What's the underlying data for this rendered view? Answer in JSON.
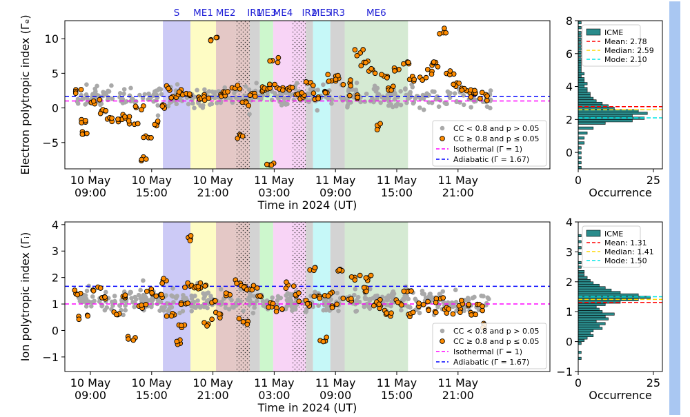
{
  "chart_data": [
    {
      "type": "scatter",
      "panel": "electron-main",
      "ylabel": "Electron polytropic index (Γₑ)",
      "xlabel": "Time in 2024 (UT)",
      "xlim_hours": [
        6.5,
        54.0
      ],
      "ylim": [
        -8.8,
        12.6
      ],
      "yticks": [
        10,
        5,
        0,
        -5
      ],
      "xticks": [
        {
          "t": 9,
          "line1": "10 May",
          "line2": "09:00"
        },
        {
          "t": 15,
          "line1": "10 May",
          "line2": "15:00"
        },
        {
          "t": 21,
          "line1": "10 May",
          "line2": "21:00"
        },
        {
          "t": 27,
          "line1": "11 May",
          "line2": "03:00"
        },
        {
          "t": 33,
          "line1": "11 May",
          "line2": "09:00"
        },
        {
          "t": 39,
          "line1": "11 May",
          "line2": "15:00"
        },
        {
          "t": 45,
          "line1": "11 May",
          "line2": "21:00"
        }
      ],
      "regions": [
        {
          "label": "S",
          "start": 16.1,
          "end": 18.8,
          "color": "#cccaf6",
          "hatch": false
        },
        {
          "label": "ME1",
          "start": 18.8,
          "end": 21.3,
          "color": "#fefcc4",
          "hatch": false
        },
        {
          "label": "ME2",
          "start": 21.3,
          "end": 23.2,
          "color": "#e4c8c6",
          "hatch": false
        },
        {
          "label": "",
          "start": 23.2,
          "end": 24.6,
          "color": "#e4c8c6",
          "hatch": true
        },
        {
          "label": "IR1",
          "start": 24.6,
          "end": 25.6,
          "color": "#d3d3d3",
          "hatch": false
        },
        {
          "label": "ME3",
          "start": 25.6,
          "end": 26.9,
          "color": "#cdf7cd",
          "hatch": false
        },
        {
          "label": "ME4",
          "start": 26.9,
          "end": 28.8,
          "color": "#f8d4f6",
          "hatch": false
        },
        {
          "label": "",
          "start": 28.8,
          "end": 30.1,
          "color": "#f8d4f6",
          "hatch": true
        },
        {
          "label": "IR2",
          "start": 30.1,
          "end": 30.8,
          "color": "#d3d3d3",
          "hatch": false
        },
        {
          "label": "ME5",
          "start": 30.8,
          "end": 32.5,
          "color": "#c6f8f8",
          "hatch": false
        },
        {
          "label": "IR3",
          "start": 32.5,
          "end": 33.9,
          "color": "#d3d3d3",
          "hatch": false
        },
        {
          "label": "ME6",
          "start": 33.9,
          "end": 40.1,
          "color": "#d5ead3",
          "hatch": false
        }
      ],
      "isothermal": 1.0,
      "adiabatic": 1.67,
      "series_gray": {
        "name": "CC < 0.8 and p > 0.05",
        "center": 1.5,
        "spread": 1.6,
        "seed": 11
      },
      "series_orange": {
        "name": "CC  ≥  0.8 and p  ≤  0.05",
        "anchors": [
          [
            7.8,
            2.6
          ],
          [
            8.2,
            -1.8
          ],
          [
            8.6,
            -3.5
          ],
          [
            9.5,
            0.8
          ],
          [
            10.2,
            -0.5
          ],
          [
            11.0,
            -1.6
          ],
          [
            11.8,
            -2.0
          ],
          [
            12.6,
            -1.2
          ],
          [
            13.2,
            -2.3
          ],
          [
            13.8,
            0.0
          ],
          [
            14.3,
            -7.0
          ],
          [
            14.6,
            -4.0
          ],
          [
            15.2,
            -2.2
          ],
          [
            15.9,
            0.5
          ],
          [
            16.5,
            3.0
          ],
          [
            17.3,
            1.5
          ],
          [
            18.1,
            2.5
          ],
          [
            18.8,
            1.8
          ],
          [
            19.6,
            1.3
          ],
          [
            20.5,
            1.5
          ],
          [
            21.2,
            10.1
          ],
          [
            21.8,
            2.0
          ],
          [
            22.4,
            2.2
          ],
          [
            23.3,
            2.8
          ],
          [
            23.6,
            -4.0
          ],
          [
            24.3,
            1.0
          ],
          [
            24.9,
            2.0
          ],
          [
            25.7,
            2.5
          ],
          [
            26.4,
            2.8
          ],
          [
            26.6,
            -8.2
          ],
          [
            27.0,
            6.8
          ],
          [
            27.5,
            3.0
          ],
          [
            28.2,
            2.6
          ],
          [
            29.1,
            2.0
          ],
          [
            29.8,
            2.1
          ],
          [
            30.5,
            3.5
          ],
          [
            31.3,
            1.6
          ],
          [
            32.2,
            2.3
          ],
          [
            32.7,
            4.0
          ],
          [
            33.4,
            4.3
          ],
          [
            34.2,
            3.5
          ],
          [
            34.8,
            1.4
          ],
          [
            35.3,
            8.0
          ],
          [
            35.8,
            6.5
          ],
          [
            36.5,
            5.5
          ],
          [
            37.0,
            -2.8
          ],
          [
            37.8,
            4.5
          ],
          [
            38.5,
            3.0
          ],
          [
            39.2,
            5.5
          ],
          [
            39.9,
            6.4
          ],
          [
            40.6,
            4.2
          ],
          [
            41.5,
            4.0
          ],
          [
            42.2,
            5.6
          ],
          [
            43.0,
            6.5
          ],
          [
            43.6,
            10.8
          ],
          [
            44.2,
            5.0
          ],
          [
            44.8,
            3.5
          ],
          [
            45.6,
            2.8
          ],
          [
            46.3,
            2.2
          ],
          [
            47.0,
            2.0
          ],
          [
            47.6,
            1.8
          ]
        ],
        "jitter": 0.7,
        "seed": 23
      }
    },
    {
      "type": "histogram",
      "panel": "electron-hist",
      "xlabel": "Occurrence",
      "xlim": [
        0,
        28
      ],
      "ylim": [
        -1,
        8
      ],
      "yticks": [
        8,
        6,
        4,
        2,
        0
      ],
      "xticks": [
        0,
        25
      ],
      "legend_title": "ICME",
      "mean": 2.78,
      "median": 2.59,
      "mode": 2.1,
      "mean_label": "Mean: 2.78",
      "median_label": "Median: 2.59",
      "mode_label": "Mode: 2.10",
      "bin_width": 0.15,
      "bins": [
        [
          -1.0,
          1
        ],
        [
          -0.7,
          1
        ],
        [
          -0.4,
          1
        ],
        [
          -0.1,
          1
        ],
        [
          0.2,
          1
        ],
        [
          0.5,
          2
        ],
        [
          0.8,
          2
        ],
        [
          1.1,
          3
        ],
        [
          1.4,
          5
        ],
        [
          1.7,
          9
        ],
        [
          1.85,
          18
        ],
        [
          2.0,
          22
        ],
        [
          2.15,
          18
        ],
        [
          2.3,
          23
        ],
        [
          2.45,
          20
        ],
        [
          2.6,
          12
        ],
        [
          2.75,
          10
        ],
        [
          2.9,
          8
        ],
        [
          3.05,
          6
        ],
        [
          3.2,
          5
        ],
        [
          3.35,
          4
        ],
        [
          3.5,
          4
        ],
        [
          3.65,
          3
        ],
        [
          3.8,
          3
        ],
        [
          3.95,
          2
        ],
        [
          4.1,
          3
        ],
        [
          4.25,
          2
        ],
        [
          4.4,
          2
        ],
        [
          4.55,
          1
        ],
        [
          4.7,
          2
        ],
        [
          4.85,
          1
        ],
        [
          5.0,
          1
        ],
        [
          5.15,
          1
        ],
        [
          5.3,
          1
        ],
        [
          5.45,
          1
        ],
        [
          5.6,
          1
        ],
        [
          5.8,
          1
        ],
        [
          6.0,
          1
        ],
        [
          6.2,
          1
        ],
        [
          6.4,
          1
        ],
        [
          6.6,
          1
        ],
        [
          6.8,
          1
        ],
        [
          7.0,
          1
        ],
        [
          7.2,
          1
        ],
        [
          7.5,
          1
        ],
        [
          7.8,
          1
        ]
      ]
    },
    {
      "type": "scatter",
      "panel": "ion-main",
      "ylabel": "Ion polytropic index (Γᵢ)",
      "xlabel": "Time in 2024 (UT)",
      "xlim_hours": [
        6.5,
        54.0
      ],
      "ylim": [
        -1.55,
        4.1
      ],
      "yticks": [
        4,
        3,
        2,
        1,
        0,
        -1
      ],
      "isothermal": 1.0,
      "adiabatic": 1.67,
      "series_gray": {
        "name": "CC < 0.8 and p > 0.05",
        "center": 1.1,
        "spread": 0.45,
        "seed": 31
      },
      "series_orange": {
        "name": "CC  ≥  0.8 and p  ≤  0.05",
        "anchors": [
          [
            7.8,
            1.4
          ],
          [
            8.3,
            0.5
          ],
          [
            9.6,
            1.6
          ],
          [
            10.4,
            1.2
          ],
          [
            11.5,
            0.6
          ],
          [
            12.5,
            1.3
          ],
          [
            13.0,
            -0.2
          ],
          [
            14.0,
            0.9
          ],
          [
            14.8,
            1.5
          ],
          [
            15.6,
            1.3
          ],
          [
            16.4,
            1.9
          ],
          [
            16.9,
            0.6
          ],
          [
            17.5,
            -0.5
          ],
          [
            18.0,
            0.2
          ],
          [
            18.3,
            1.0
          ],
          [
            18.6,
            1.7
          ],
          [
            18.9,
            3.5
          ],
          [
            19.4,
            1.6
          ],
          [
            20.0,
            1.7
          ],
          [
            20.5,
            0.3
          ],
          [
            21.2,
            1.1
          ],
          [
            21.6,
            0.6
          ],
          [
            22.5,
            1.4
          ],
          [
            23.5,
            1.8
          ],
          [
            24.0,
            0.3
          ],
          [
            24.5,
            1.6
          ],
          [
            25.0,
            1.7
          ],
          [
            25.7,
            1.3
          ],
          [
            26.5,
            0.9
          ],
          [
            27.6,
            0.8
          ],
          [
            28.5,
            1.7
          ],
          [
            29.3,
            1.3
          ],
          [
            30.2,
            1.0
          ],
          [
            30.6,
            2.4
          ],
          [
            31.2,
            1.3
          ],
          [
            31.8,
            -0.4
          ],
          [
            32.4,
            1.4
          ],
          [
            33.0,
            0.9
          ],
          [
            33.6,
            2.3
          ],
          [
            34.2,
            1.2
          ],
          [
            35.0,
            2.0
          ],
          [
            35.8,
            1.6
          ],
          [
            36.4,
            2.0
          ],
          [
            37.0,
            1.0
          ],
          [
            37.7,
            0.9
          ],
          [
            38.4,
            0.6
          ],
          [
            39.3,
            1.0
          ],
          [
            40.0,
            1.5
          ],
          [
            40.6,
            0.6
          ],
          [
            41.6,
            1.0
          ],
          [
            42.4,
            0.8
          ],
          [
            43.2,
            1.2
          ],
          [
            44.0,
            0.8
          ],
          [
            44.8,
            0.8
          ],
          [
            45.6,
            1.0
          ],
          [
            46.4,
            0.6
          ],
          [
            47.2,
            1.0
          ],
          [
            47.7,
            0.1
          ]
        ],
        "jitter": 0.18,
        "seed": 47
      }
    },
    {
      "type": "histogram",
      "panel": "ion-hist",
      "xlabel": "Occurrence",
      "xlim": [
        0,
        28
      ],
      "ylim": [
        -1,
        4
      ],
      "yticks": [
        4,
        3,
        2,
        1,
        0,
        -1
      ],
      "xticks": [
        0,
        25
      ],
      "legend_title": "ICME",
      "mean": 1.31,
      "median": 1.41,
      "mode": 1.5,
      "mean_label": "Mean: 1.31",
      "median_label": "Median: 1.41",
      "mode_label": "Mode: 1.50",
      "bin_width": 0.08,
      "bins": [
        [
          -0.6,
          1
        ],
        [
          -0.4,
          1
        ],
        [
          -0.1,
          1
        ],
        [
          0.0,
          2
        ],
        [
          0.08,
          3
        ],
        [
          0.16,
          5
        ],
        [
          0.24,
          4
        ],
        [
          0.32,
          5
        ],
        [
          0.4,
          8
        ],
        [
          0.48,
          7
        ],
        [
          0.56,
          9
        ],
        [
          0.64,
          6
        ],
        [
          0.72,
          10
        ],
        [
          0.8,
          9
        ],
        [
          0.88,
          12
        ],
        [
          0.96,
          8
        ],
        [
          1.04,
          7
        ],
        [
          1.12,
          6
        ],
        [
          1.2,
          9
        ],
        [
          1.28,
          14
        ],
        [
          1.36,
          20
        ],
        [
          1.44,
          24
        ],
        [
          1.52,
          20
        ],
        [
          1.6,
          14
        ],
        [
          1.68,
          11
        ],
        [
          1.76,
          9
        ],
        [
          1.84,
          7
        ],
        [
          1.92,
          5
        ],
        [
          2.0,
          4
        ],
        [
          2.1,
          3
        ],
        [
          2.2,
          2
        ],
        [
          2.3,
          2
        ],
        [
          2.45,
          1
        ],
        [
          2.6,
          1
        ],
        [
          2.9,
          1
        ],
        [
          3.1,
          1
        ],
        [
          3.3,
          1
        ],
        [
          3.5,
          1
        ]
      ]
    }
  ],
  "legend_main": {
    "gray": "CC < 0.8 and p > 0.05",
    "orange": "CC  ≥  0.8 and p  ≤  0.05",
    "iso": "Isothermal (Γ = 1)",
    "adi": "Adiabatic (Γ = 1.67)"
  },
  "colors": {
    "gray": "#a9a9a9",
    "orange": "#ff8c00",
    "iso": "#ff00ff",
    "adi": "#0000ff",
    "hist": "#2a8c8c",
    "mean": "#ff0000",
    "median": "#ffd700",
    "mode": "#00e6e6",
    "region_label": "#1f1fd6"
  }
}
